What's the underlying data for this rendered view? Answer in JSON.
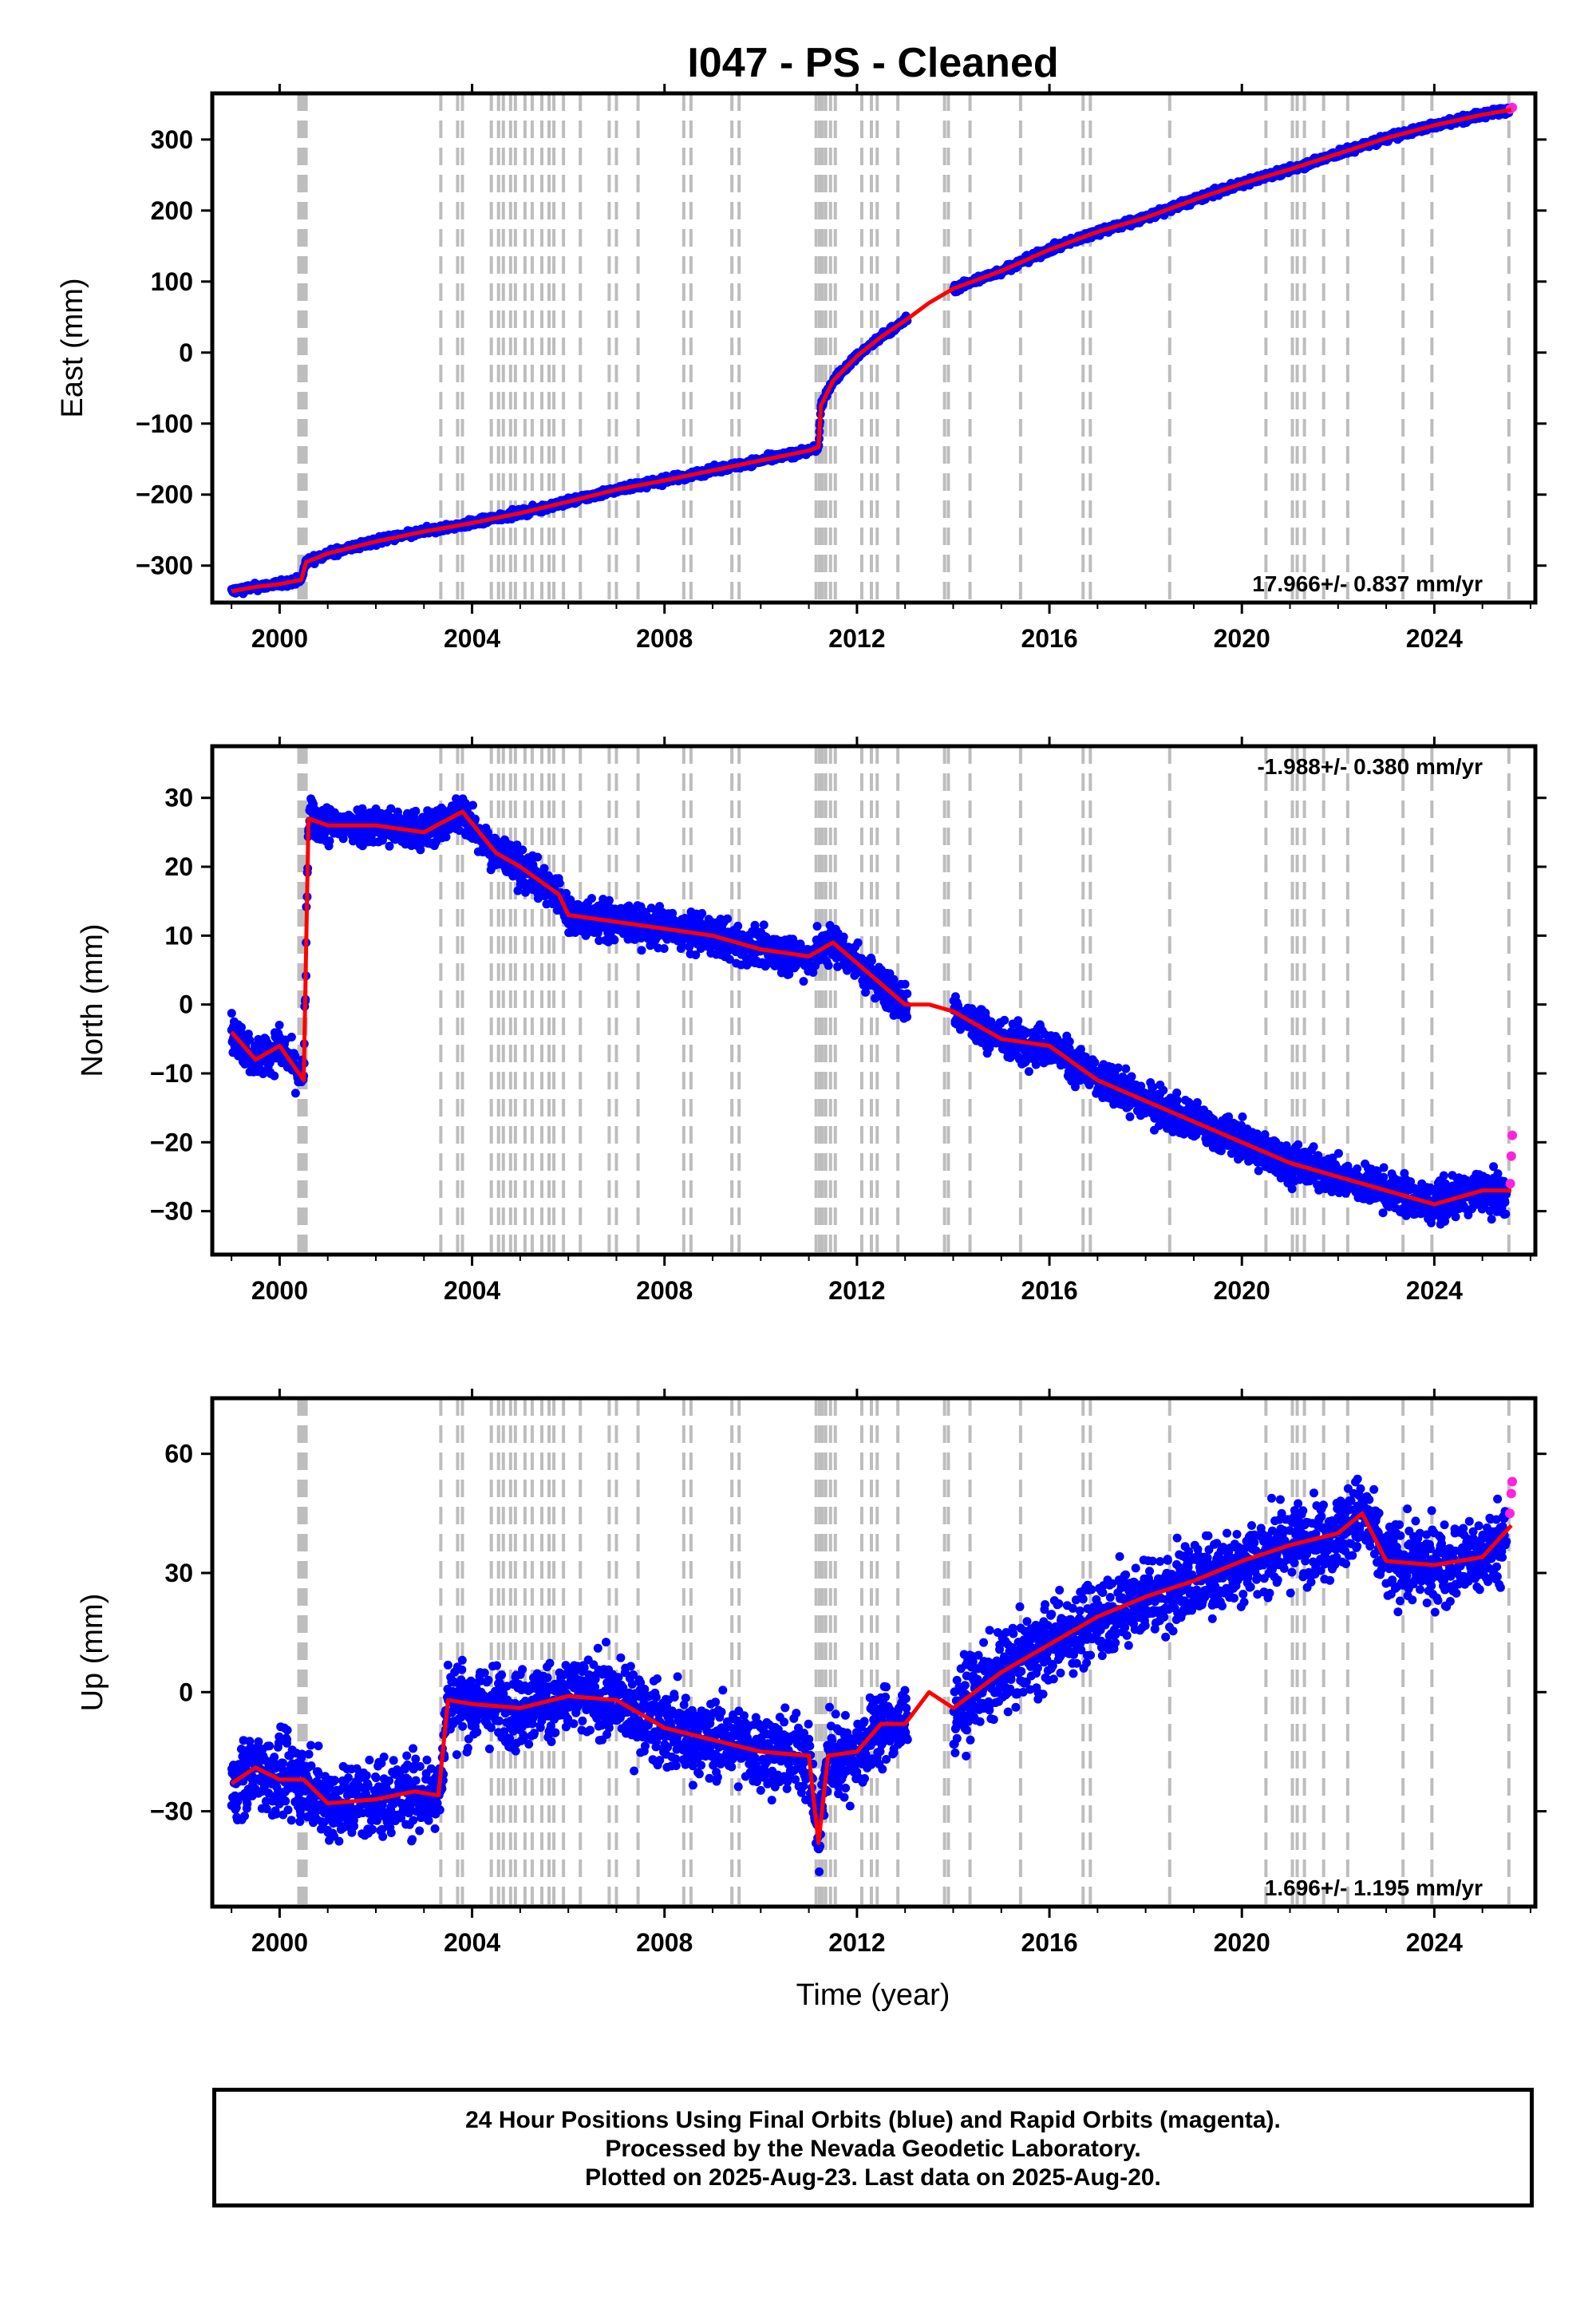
{
  "title": "I047  - PS - Cleaned",
  "colors": {
    "final": "#0000ff",
    "rapid": "#ff22dd",
    "model": "#ff0000",
    "event_line": "#bdbdbd",
    "frame": "#000000"
  },
  "footer": {
    "line1": "24 Hour Positions Using Final Orbits (blue) and Rapid Orbits (magenta).",
    "line2": "Processed by the Nevada Geodetic Laboratory.",
    "line3": "Plotted on 2025-Aug-23. Last data on 2025-Aug-20."
  },
  "xlabel": "Time (year)",
  "chart_data": [
    {
      "type": "scatter",
      "component": "East",
      "ylabel": "East (mm)",
      "xlim": [
        1998.6,
        2026.1
      ],
      "ylim": [
        -352,
        365
      ],
      "xticks": [
        2000,
        2004,
        2008,
        2012,
        2016,
        2020,
        2024
      ],
      "yticks": [
        -300,
        -200,
        -100,
        0,
        100,
        200,
        300
      ],
      "ytick_labels": [
        "−300",
        "−200",
        "−100",
        "0",
        "100",
        "200",
        "300"
      ],
      "rate_text": "17.966+/- 0.837 mm/yr",
      "rate_position": "bottom-right",
      "series": [
        {
          "name": "Final Orbits (blue)",
          "points": [
            [
              1999.0,
              -336
            ],
            [
              1999.5,
              -330
            ],
            [
              2000.0,
              -326
            ],
            [
              2000.45,
              -320
            ],
            [
              2000.55,
              -295
            ],
            [
              2001.0,
              -283
            ],
            [
              2002.0,
              -266
            ],
            [
              2003.0,
              -252
            ],
            [
              2004.0,
              -240
            ],
            [
              2005.0,
              -226
            ],
            [
              2006.0,
              -210
            ],
            [
              2007.0,
              -193
            ],
            [
              2008.0,
              -180
            ],
            [
              2009.0,
              -166
            ],
            [
              2010.0,
              -152
            ],
            [
              2011.0,
              -138
            ],
            [
              2011.2,
              -133
            ],
            [
              2011.25,
              -75
            ],
            [
              2011.5,
              -40
            ],
            [
              2012.0,
              -5
            ],
            [
              2012.5,
              22
            ],
            [
              2013.0,
              45
            ],
            [
              2013.5,
              70
            ],
            [
              2014.0,
              90
            ],
            [
              2015.0,
              115
            ],
            [
              2016.0,
              145
            ],
            [
              2017.0,
              170
            ],
            [
              2018.0,
              190
            ],
            [
              2019.0,
              215
            ],
            [
              2020.0,
              238
            ],
            [
              2021.0,
              258
            ],
            [
              2022.0,
              280
            ],
            [
              2023.0,
              302
            ],
            [
              2024.0,
              320
            ],
            [
              2025.0,
              335
            ],
            [
              2025.55,
              342
            ]
          ]
        },
        {
          "name": "Rapid Orbits (magenta)",
          "points": [
            [
              2025.58,
              343
            ],
            [
              2025.62,
              345
            ]
          ]
        },
        {
          "name": "model",
          "points": [
            [
              1999.0,
              -336
            ],
            [
              1999.5,
              -330
            ],
            [
              2000.0,
              -326
            ],
            [
              2000.45,
              -320
            ],
            [
              2000.55,
              -295
            ],
            [
              2001.0,
              -283
            ],
            [
              2002.0,
              -266
            ],
            [
              2003.0,
              -252
            ],
            [
              2004.0,
              -240
            ],
            [
              2005.0,
              -226
            ],
            [
              2006.0,
              -210
            ],
            [
              2007.0,
              -193
            ],
            [
              2008.0,
              -180
            ],
            [
              2009.0,
              -166
            ],
            [
              2010.0,
              -152
            ],
            [
              2011.0,
              -138
            ],
            [
              2011.2,
              -133
            ],
            [
              2011.25,
              -75
            ],
            [
              2011.5,
              -40
            ],
            [
              2012.0,
              -5
            ],
            [
              2012.5,
              22
            ],
            [
              2013.0,
              45
            ],
            [
              2013.5,
              70
            ],
            [
              2014.0,
              90
            ],
            [
              2015.0,
              115
            ],
            [
              2016.0,
              145
            ],
            [
              2017.0,
              170
            ],
            [
              2018.0,
              190
            ],
            [
              2019.0,
              215
            ],
            [
              2020.0,
              238
            ],
            [
              2021.0,
              258
            ],
            [
              2022.0,
              280
            ],
            [
              2023.0,
              302
            ],
            [
              2024.0,
              320
            ],
            [
              2025.0,
              335
            ],
            [
              2025.6,
              342
            ]
          ]
        }
      ]
    },
    {
      "type": "scatter",
      "component": "North",
      "ylabel": "North (mm)",
      "xlim": [
        1998.6,
        2026.1
      ],
      "ylim": [
        -36.3,
        37.5
      ],
      "xticks": [
        2000,
        2004,
        2008,
        2012,
        2016,
        2020,
        2024
      ],
      "yticks": [
        -30,
        -20,
        -10,
        0,
        10,
        20,
        30
      ],
      "ytick_labels": [
        "−30",
        "−20",
        "−10",
        "0",
        "10",
        "20",
        "30"
      ],
      "rate_text": "-1.988+/- 0.380 mm/yr",
      "rate_position": "top-right",
      "series": [
        {
          "name": "Final Orbits (blue)",
          "points": [
            [
              1999.0,
              -4
            ],
            [
              1999.5,
              -8
            ],
            [
              2000.0,
              -6
            ],
            [
              2000.5,
              -11
            ],
            [
              2000.6,
              27
            ],
            [
              2001.0,
              26
            ],
            [
              2002.0,
              26
            ],
            [
              2003.0,
              25
            ],
            [
              2003.8,
              28
            ],
            [
              2004.5,
              22
            ],
            [
              2005.0,
              20
            ],
            [
              2005.8,
              16
            ],
            [
              2006.0,
              13
            ],
            [
              2007.0,
              12
            ],
            [
              2008.0,
              11
            ],
            [
              2009.0,
              10
            ],
            [
              2010.0,
              8
            ],
            [
              2011.0,
              7
            ],
            [
              2011.5,
              9
            ],
            [
              2012.0,
              6
            ],
            [
              2012.5,
              3
            ],
            [
              2013.0,
              0
            ],
            [
              2013.5,
              0
            ],
            [
              2014.0,
              -1
            ],
            [
              2015.0,
              -5
            ],
            [
              2016.0,
              -6
            ],
            [
              2017.0,
              -11
            ],
            [
              2018.0,
              -14
            ],
            [
              2019.0,
              -17
            ],
            [
              2020.0,
              -20
            ],
            [
              2021.0,
              -23
            ],
            [
              2022.0,
              -25
            ],
            [
              2023.0,
              -27
            ],
            [
              2024.0,
              -29
            ],
            [
              2025.0,
              -27
            ],
            [
              2025.5,
              -28
            ]
          ]
        },
        {
          "name": "Rapid Orbits (magenta)",
          "points": [
            [
              2025.58,
              -26
            ],
            [
              2025.6,
              -22
            ],
            [
              2025.62,
              -19
            ]
          ]
        },
        {
          "name": "model",
          "points": [
            [
              1999.0,
              -4
            ],
            [
              1999.5,
              -8
            ],
            [
              2000.0,
              -6
            ],
            [
              2000.5,
              -11
            ],
            [
              2000.6,
              27
            ],
            [
              2001.0,
              26
            ],
            [
              2002.0,
              26
            ],
            [
              2003.0,
              25
            ],
            [
              2003.8,
              28
            ],
            [
              2004.5,
              22
            ],
            [
              2005.0,
              20
            ],
            [
              2005.8,
              16
            ],
            [
              2006.0,
              13
            ],
            [
              2007.0,
              12
            ],
            [
              2008.0,
              11
            ],
            [
              2009.0,
              10
            ],
            [
              2010.0,
              8
            ],
            [
              2011.0,
              7
            ],
            [
              2011.5,
              9
            ],
            [
              2012.0,
              6
            ],
            [
              2012.5,
              3
            ],
            [
              2013.0,
              0
            ],
            [
              2013.5,
              0
            ],
            [
              2014.0,
              -1
            ],
            [
              2015.0,
              -5
            ],
            [
              2016.0,
              -6
            ],
            [
              2017.0,
              -11
            ],
            [
              2018.0,
              -14
            ],
            [
              2019.0,
              -17
            ],
            [
              2020.0,
              -20
            ],
            [
              2021.0,
              -23
            ],
            [
              2022.0,
              -25
            ],
            [
              2023.0,
              -27
            ],
            [
              2024.0,
              -29
            ],
            [
              2025.0,
              -27
            ],
            [
              2025.6,
              -27
            ]
          ]
        }
      ]
    },
    {
      "type": "scatter",
      "component": "Up",
      "ylabel": "Up (mm)",
      "xlim": [
        1998.6,
        2026.1
      ],
      "ylim": [
        -54,
        74
      ],
      "xticks": [
        2000,
        2004,
        2008,
        2012,
        2016,
        2020,
        2024
      ],
      "yticks": [
        -30,
        0,
        30,
        60
      ],
      "ytick_labels": [
        "−30",
        "0",
        "30",
        "60"
      ],
      "rate_text": "1.696+/- 1.195 mm/yr",
      "rate_position": "bottom-right",
      "series": [
        {
          "name": "Final Orbits (blue)",
          "points": [
            [
              1999.0,
              -23
            ],
            [
              1999.5,
              -19
            ],
            [
              2000.0,
              -22
            ],
            [
              2000.5,
              -22
            ],
            [
              2001.0,
              -28
            ],
            [
              2002.0,
              -27
            ],
            [
              2002.8,
              -25
            ],
            [
              2003.3,
              -26
            ],
            [
              2003.5,
              -2
            ],
            [
              2004.0,
              -3
            ],
            [
              2005.0,
              -4
            ],
            [
              2006.0,
              -1
            ],
            [
              2007.0,
              -2
            ],
            [
              2008.0,
              -9
            ],
            [
              2009.0,
              -12
            ],
            [
              2010.0,
              -15
            ],
            [
              2011.0,
              -16
            ],
            [
              2011.2,
              -38
            ],
            [
              2011.4,
              -16
            ],
            [
              2012.0,
              -15
            ],
            [
              2012.5,
              -8
            ],
            [
              2013.0,
              -8
            ],
            [
              2013.5,
              0
            ],
            [
              2014.0,
              -4
            ],
            [
              2015.0,
              5
            ],
            [
              2016.0,
              12
            ],
            [
              2017.0,
              19
            ],
            [
              2018.0,
              24
            ],
            [
              2019.0,
              28
            ],
            [
              2020.0,
              33
            ],
            [
              2021.0,
              37
            ],
            [
              2022.0,
              40
            ],
            [
              2022.5,
              45
            ],
            [
              2023.0,
              33
            ],
            [
              2024.0,
              32
            ],
            [
              2025.0,
              34
            ],
            [
              2025.5,
              40
            ]
          ]
        },
        {
          "name": "Rapid Orbits (magenta)",
          "points": [
            [
              2025.57,
              45
            ],
            [
              2025.6,
              50
            ],
            [
              2025.62,
              53
            ]
          ]
        },
        {
          "name": "model",
          "points": [
            [
              1999.0,
              -23
            ],
            [
              1999.5,
              -19
            ],
            [
              2000.0,
              -22
            ],
            [
              2000.5,
              -22
            ],
            [
              2001.0,
              -28
            ],
            [
              2002.0,
              -27
            ],
            [
              2002.8,
              -25
            ],
            [
              2003.3,
              -26
            ],
            [
              2003.5,
              -2
            ],
            [
              2004.0,
              -3
            ],
            [
              2005.0,
              -4
            ],
            [
              2006.0,
              -1
            ],
            [
              2007.0,
              -2
            ],
            [
              2008.0,
              -9
            ],
            [
              2009.0,
              -12
            ],
            [
              2010.0,
              -15
            ],
            [
              2011.0,
              -16
            ],
            [
              2011.2,
              -38
            ],
            [
              2011.4,
              -16
            ],
            [
              2012.0,
              -15
            ],
            [
              2012.5,
              -8
            ],
            [
              2013.0,
              -8
            ],
            [
              2013.5,
              0
            ],
            [
              2014.0,
              -4
            ],
            [
              2015.0,
              5
            ],
            [
              2016.0,
              12
            ],
            [
              2017.0,
              19
            ],
            [
              2018.0,
              24
            ],
            [
              2019.0,
              28
            ],
            [
              2020.0,
              33
            ],
            [
              2021.0,
              37
            ],
            [
              2022.0,
              40
            ],
            [
              2022.5,
              45
            ],
            [
              2023.0,
              33
            ],
            [
              2024.0,
              32
            ],
            [
              2025.0,
              34
            ],
            [
              2025.6,
              42
            ]
          ]
        }
      ]
    }
  ],
  "event_lines_years": [
    2000.4,
    2000.45,
    2000.5,
    2000.55,
    2003.35,
    2003.7,
    2003.8,
    2004.4,
    2004.55,
    2004.65,
    2004.8,
    2004.9,
    2005.1,
    2005.25,
    2005.45,
    2005.6,
    2005.7,
    2005.9,
    2006.25,
    2006.85,
    2007.0,
    2007.45,
    2008.4,
    2008.55,
    2009.4,
    2009.55,
    2011.15,
    2011.22,
    2011.28,
    2011.35,
    2011.45,
    2011.55,
    2012.1,
    2012.3,
    2012.42,
    2012.85,
    2013.82,
    2013.9,
    2014.35,
    2015.4,
    2016.7,
    2016.85,
    2018.5,
    2020.5,
    2021.05,
    2021.15,
    2021.3,
    2021.7,
    2022.2,
    2023.35,
    2023.95,
    2025.55
  ]
}
